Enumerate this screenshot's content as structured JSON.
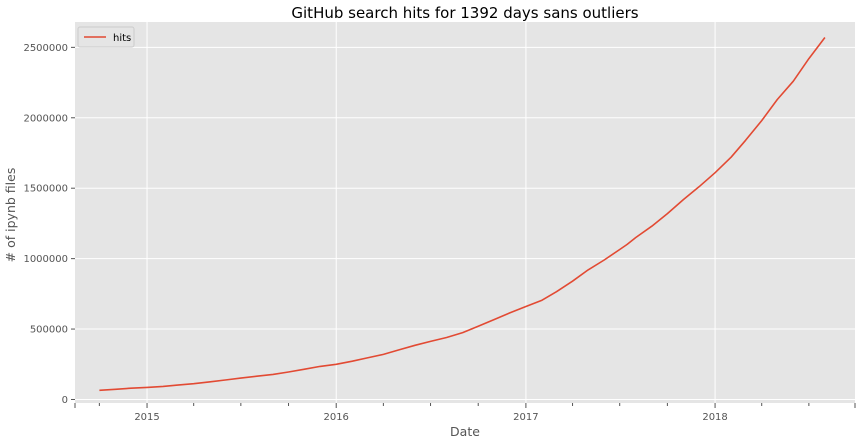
{
  "chart_data": {
    "type": "line",
    "title": "GitHub search hits for 1392 days sans outliers",
    "xlabel": "Date",
    "ylabel": "# of ipynb files",
    "xlim": [
      "2014-08-15",
      "2018-09-28"
    ],
    "ylim": [
      -25000,
      2680000
    ],
    "x_ticks": [
      "2015-01-01",
      "2016-01-01",
      "2017-01-01",
      "2018-01-01"
    ],
    "x_tick_labels": [
      "2015",
      "2016",
      "2017",
      "2018"
    ],
    "y_ticks": [
      0,
      500000,
      1000000,
      1500000,
      2000000,
      2500000
    ],
    "y_tick_labels": [
      "0",
      "500000",
      "1000000",
      "1500000",
      "2000000",
      "2500000"
    ],
    "grid": true,
    "legend": {
      "position": "top-left",
      "entries": [
        "hits"
      ]
    },
    "series": [
      {
        "name": "hits",
        "color": "#E24A33",
        "x": [
          "2014-10-01",
          "2014-11-01",
          "2014-12-01",
          "2015-01-01",
          "2015-02-01",
          "2015-03-01",
          "2015-04-01",
          "2015-05-01",
          "2015-06-01",
          "2015-07-01",
          "2015-08-01",
          "2015-09-01",
          "2015-10-01",
          "2015-11-01",
          "2015-12-01",
          "2016-01-01",
          "2016-02-01",
          "2016-03-01",
          "2016-04-01",
          "2016-05-01",
          "2016-06-01",
          "2016-07-01",
          "2016-08-01",
          "2016-09-01",
          "2016-10-01",
          "2016-11-01",
          "2016-12-01",
          "2017-01-01",
          "2017-02-01",
          "2017-03-01",
          "2017-04-01",
          "2017-05-01",
          "2017-06-01",
          "2017-07-01",
          "2017-07-15",
          "2017-08-01",
          "2017-09-01",
          "2017-10-01",
          "2017-11-01",
          "2017-12-01",
          "2018-01-01",
          "2018-02-01",
          "2018-03-01",
          "2018-04-01",
          "2018-05-01",
          "2018-06-01",
          "2018-07-01",
          "2018-08-01"
        ],
        "values": [
          65000,
          72000,
          80000,
          86000,
          93000,
          102000,
          112000,
          125000,
          138000,
          152000,
          165000,
          178000,
          195000,
          215000,
          235000,
          250000,
          272000,
          295000,
          320000,
          352000,
          385000,
          412000,
          440000,
          475000,
          520000,
          568000,
          615000,
          660000,
          705000,
          765000,
          840000,
          920000,
          990000,
          1065000,
          1100000,
          1150000,
          1230000,
          1320000,
          1420000,
          1510000,
          1610000,
          1720000,
          1840000,
          1980000,
          2130000,
          2260000,
          2420000,
          2570000
        ]
      }
    ]
  }
}
